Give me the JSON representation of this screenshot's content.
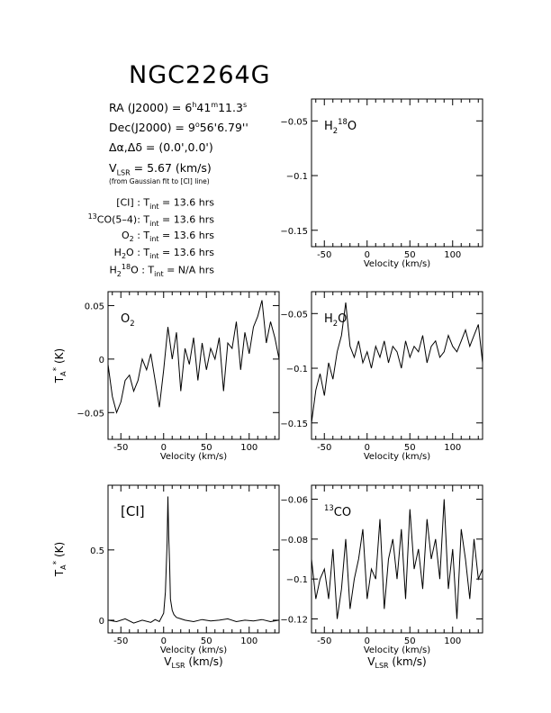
{
  "header": {
    "title": "NGC2264G",
    "ra": "RA (J2000) = 6h41m11.3s",
    "ra_parts": {
      "lead": "RA (J2000) =  6",
      "h": "h",
      "v1": "41",
      "m": "m",
      "v2": "11.3",
      "s": "s"
    },
    "dec_parts": {
      "lead": "Dec(J2000) =  9",
      "deg": "o",
      "rest": "56'6.79''"
    },
    "offset": "Δα,Δδ = (0.0',0.0')",
    "vlsr_parts": {
      "lead": "V",
      "sub": "LSR",
      "rest": "  = 5.67 (km/s)"
    },
    "vlsr_note": "(from Gaussian fit to [CI] line)",
    "integrations": [
      {
        "pre": "",
        "label": "[CI] : T",
        "sub": "int",
        "value": " = 13.6 hrs"
      },
      {
        "pre": "13",
        "label": "CO(5–4): T",
        "sub": "int",
        "value": " = 13.6 hrs"
      },
      {
        "pre": "",
        "label": "O",
        "sub2": "2",
        "label2": " : T",
        "sub": "int",
        "value": " = 13.6 hrs"
      },
      {
        "pre": "",
        "label": "H",
        "sub2": "2",
        "label2": "O : T",
        "sub": "int",
        "value": " = 13.6 hrs"
      },
      {
        "pre": "",
        "label": "H",
        "sub2": "2",
        "sup2": "18",
        "label2": "O : T",
        "sub": "int",
        "value": " = N/A hrs"
      }
    ]
  },
  "chart_data": [
    {
      "id": "h218o",
      "type": "line",
      "species": {
        "main": "H",
        "sub": "2",
        "sup": "18",
        "tail": "O"
      },
      "xlabel": "Velocity (km/s)",
      "ylabel": "",
      "xlim": [
        -65,
        135
      ],
      "ylim": [
        -0.165,
        -0.03
      ],
      "xticks": [
        -50,
        0,
        50,
        100
      ],
      "yticks": [
        -0.05,
        -0.1,
        -0.15
      ],
      "ytick_labels": [
        "−0.05",
        "−0.1",
        "−0.15"
      ],
      "y_axis_side": "left",
      "x": [],
      "y": []
    },
    {
      "id": "o2",
      "type": "line",
      "species": {
        "main": "O",
        "sub": "2",
        "sup": "",
        "tail": ""
      },
      "xlabel": "Velocity (km/s)",
      "ylabel": "TA* (K)",
      "xlim": [
        -65,
        135
      ],
      "ylim": [
        -0.075,
        0.063
      ],
      "xticks": [
        -50,
        0,
        50,
        100
      ],
      "yticks": [
        0.05,
        0,
        -0.05
      ],
      "ytick_labels": [
        "0.05",
        "0",
        "−0.05"
      ],
      "y_axis_side": "left",
      "x": [
        -65,
        -60,
        -55,
        -50,
        -45,
        -40,
        -35,
        -30,
        -25,
        -20,
        -15,
        -10,
        -5,
        0,
        5,
        10,
        15,
        20,
        25,
        30,
        35,
        40,
        45,
        50,
        55,
        60,
        65,
        70,
        75,
        80,
        85,
        90,
        95,
        100,
        105,
        110,
        115,
        120,
        125,
        130,
        135
      ],
      "y": [
        -0.005,
        -0.035,
        -0.05,
        -0.04,
        -0.02,
        -0.015,
        -0.03,
        -0.02,
        0.0,
        -0.01,
        0.005,
        -0.02,
        -0.045,
        -0.01,
        0.03,
        0.0,
        0.025,
        -0.03,
        0.01,
        -0.005,
        0.02,
        -0.02,
        0.015,
        -0.01,
        0.01,
        0.0,
        0.02,
        -0.03,
        0.015,
        0.01,
        0.035,
        -0.01,
        0.025,
        0.005,
        0.03,
        0.04,
        0.055,
        0.015,
        0.035,
        0.02,
        0.0
      ]
    },
    {
      "id": "h2o",
      "type": "line",
      "species": {
        "main": "H",
        "sub": "2",
        "sup": "",
        "tail": "O"
      },
      "xlabel": "Velocity (km/s)",
      "ylabel": "",
      "xlim": [
        -65,
        135
      ],
      "ylim": [
        -0.165,
        -0.03
      ],
      "xticks": [
        -50,
        0,
        50,
        100
      ],
      "yticks": [
        -0.05,
        -0.1,
        -0.15
      ],
      "ytick_labels": [
        "−0.05",
        "−0.1",
        "−0.15"
      ],
      "y_axis_side": "left",
      "x": [
        -65,
        -60,
        -55,
        -50,
        -45,
        -40,
        -35,
        -30,
        -25,
        -20,
        -15,
        -10,
        -5,
        0,
        5,
        10,
        15,
        20,
        25,
        30,
        35,
        40,
        45,
        50,
        55,
        60,
        65,
        70,
        75,
        80,
        85,
        90,
        95,
        100,
        105,
        110,
        115,
        120,
        125,
        130,
        135
      ],
      "y": [
        -0.15,
        -0.12,
        -0.105,
        -0.125,
        -0.095,
        -0.11,
        -0.085,
        -0.07,
        -0.04,
        -0.08,
        -0.09,
        -0.075,
        -0.095,
        -0.085,
        -0.1,
        -0.08,
        -0.09,
        -0.075,
        -0.095,
        -0.08,
        -0.085,
        -0.1,
        -0.075,
        -0.09,
        -0.08,
        -0.085,
        -0.07,
        -0.095,
        -0.08,
        -0.075,
        -0.09,
        -0.085,
        -0.07,
        -0.08,
        -0.085,
        -0.075,
        -0.065,
        -0.08,
        -0.07,
        -0.06,
        -0.095
      ]
    },
    {
      "id": "ci",
      "type": "line",
      "species": {
        "main": "[CI]",
        "sub": "",
        "sup": "",
        "tail": ""
      },
      "xlabel": "Velocity (km/s)",
      "xlabel2": "VLSR (km/s)",
      "ylabel": "TA* (K)",
      "xlim": [
        -65,
        135
      ],
      "ylim": [
        -0.09,
        0.96
      ],
      "xticks": [
        -50,
        0,
        50,
        100
      ],
      "yticks": [
        0.5,
        0
      ],
      "ytick_labels": [
        "0.5",
        "0"
      ],
      "y_axis_side": "left",
      "x": [
        -65,
        -55,
        -45,
        -35,
        -25,
        -15,
        -10,
        -5,
        0,
        2,
        4,
        5,
        6,
        7,
        8,
        10,
        12,
        15,
        20,
        25,
        35,
        45,
        55,
        65,
        75,
        85,
        95,
        105,
        115,
        125,
        135
      ],
      "y": [
        0.0,
        -0.01,
        0.01,
        -0.02,
        0.0,
        -0.015,
        0.005,
        -0.01,
        0.05,
        0.2,
        0.55,
        0.88,
        0.6,
        0.4,
        0.15,
        0.07,
        0.04,
        0.02,
        0.01,
        0.0,
        -0.01,
        0.005,
        -0.005,
        0.0,
        0.01,
        -0.01,
        0.0,
        -0.005,
        0.005,
        -0.01,
        0.0
      ]
    },
    {
      "id": "co13",
      "type": "line",
      "species": {
        "main": "CO",
        "sub": "",
        "sup": "13",
        "tail": ""
      },
      "xlabel": "Velocity (km/s)",
      "xlabel2": "VLSR (km/s)",
      "ylabel": "",
      "xlim": [
        -65,
        135
      ],
      "ylim": [
        -0.127,
        -0.053
      ],
      "xticks": [
        -50,
        0,
        50,
        100
      ],
      "yticks": [
        -0.06,
        -0.08,
        -0.1,
        -0.12
      ],
      "ytick_labels": [
        "−0.06",
        "−0.08",
        "−0.1",
        "−0.12"
      ],
      "y_axis_side": "left",
      "x": [
        -65,
        -60,
        -55,
        -50,
        -45,
        -40,
        -35,
        -30,
        -25,
        -20,
        -15,
        -10,
        -5,
        0,
        5,
        10,
        15,
        20,
        25,
        30,
        35,
        40,
        45,
        50,
        55,
        60,
        65,
        70,
        75,
        80,
        85,
        90,
        95,
        100,
        105,
        110,
        115,
        120,
        125,
        130,
        135
      ],
      "y": [
        -0.09,
        -0.11,
        -0.1,
        -0.095,
        -0.11,
        -0.085,
        -0.12,
        -0.105,
        -0.08,
        -0.115,
        -0.1,
        -0.09,
        -0.075,
        -0.11,
        -0.095,
        -0.1,
        -0.07,
        -0.115,
        -0.09,
        -0.08,
        -0.1,
        -0.075,
        -0.11,
        -0.065,
        -0.095,
        -0.085,
        -0.105,
        -0.07,
        -0.09,
        -0.08,
        -0.1,
        -0.06,
        -0.105,
        -0.085,
        -0.12,
        -0.075,
        -0.09,
        -0.11,
        -0.08,
        -0.1,
        -0.095
      ]
    }
  ]
}
